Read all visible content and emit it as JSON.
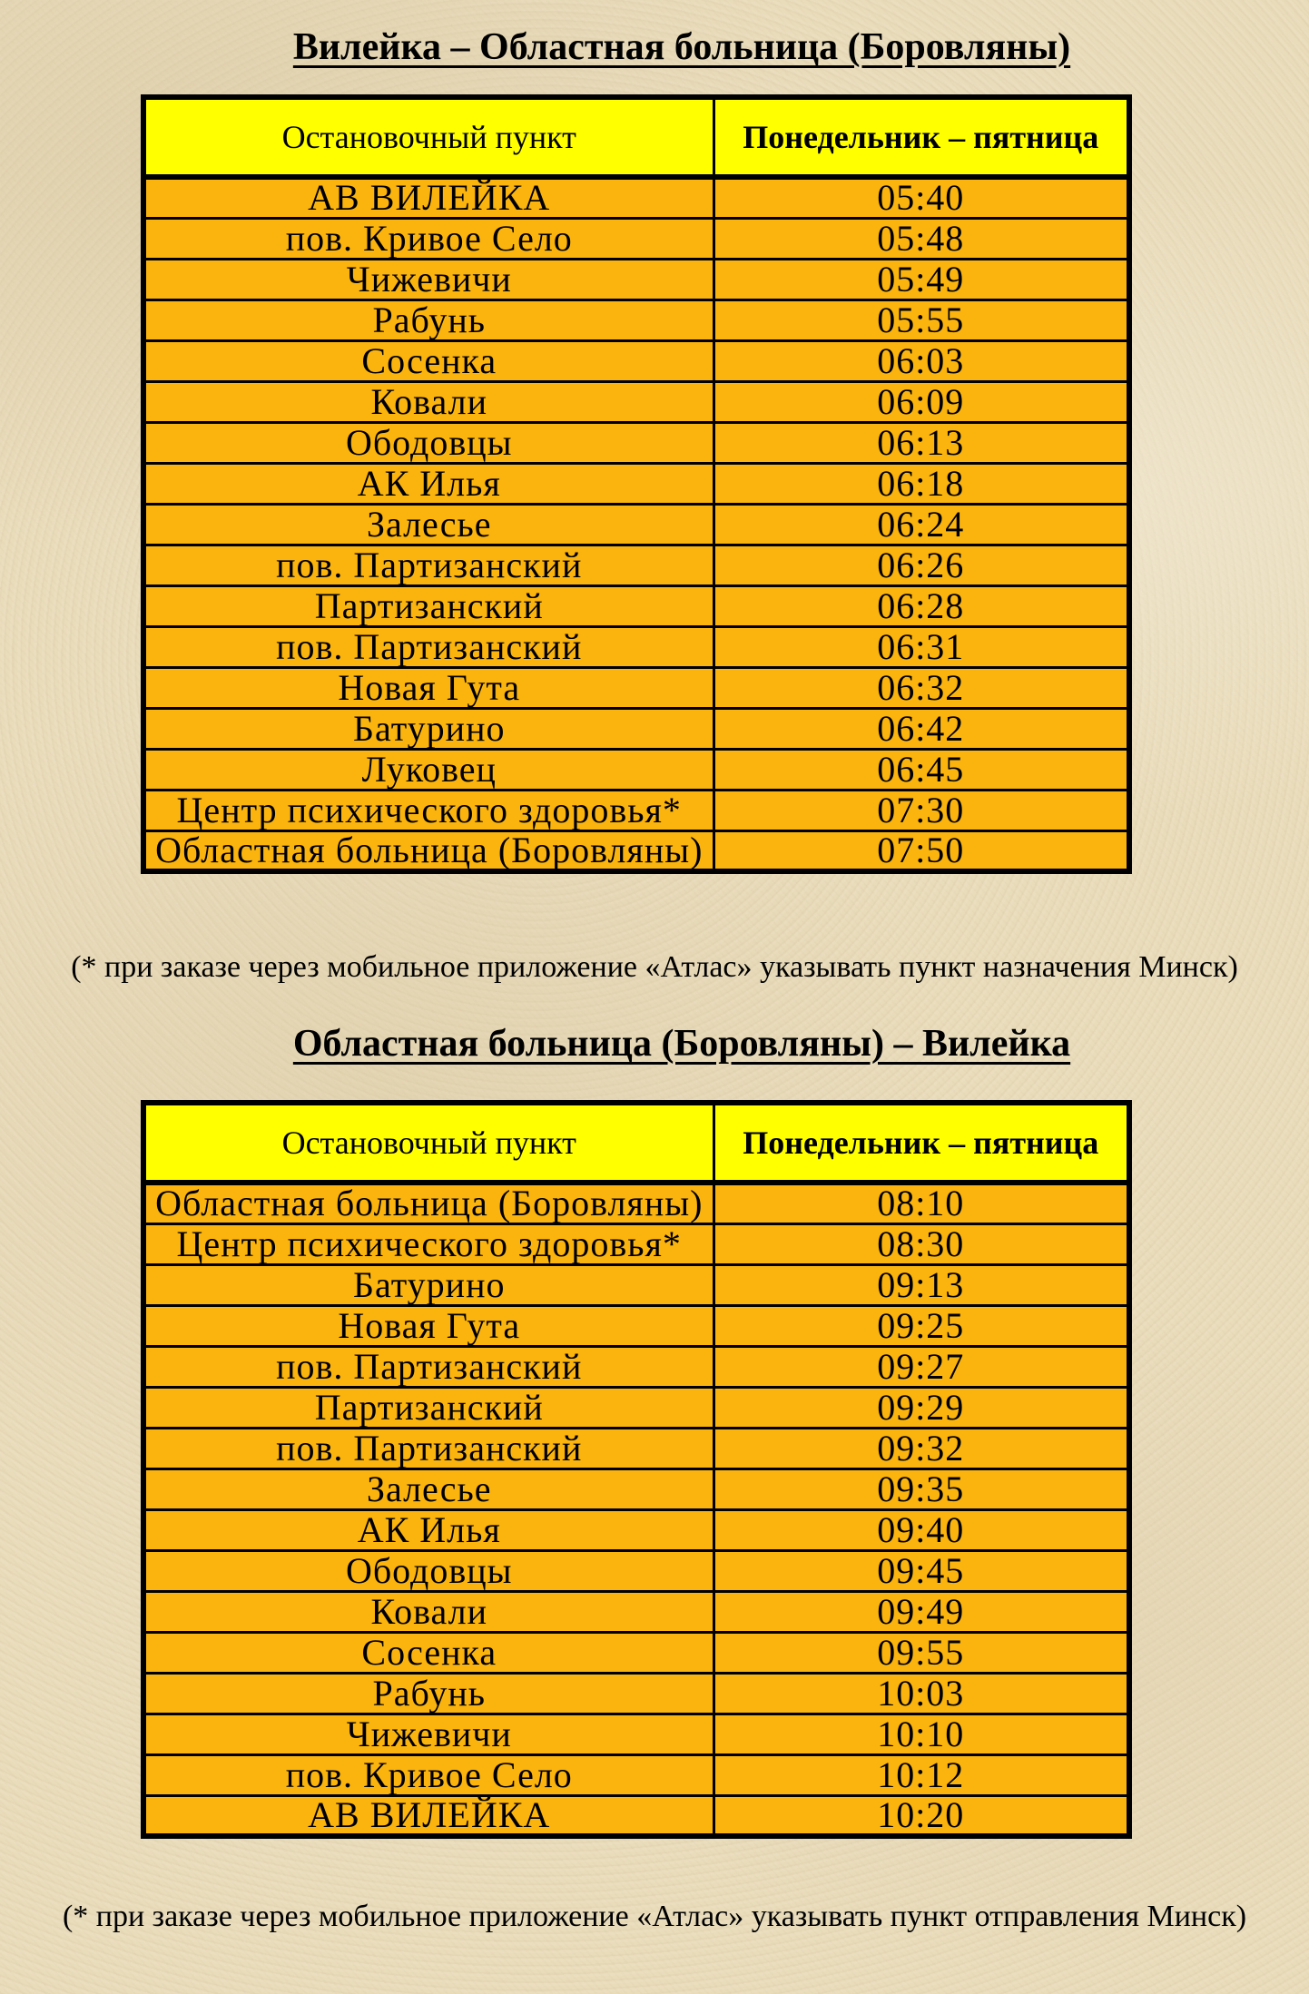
{
  "colors": {
    "header_bg": "#ffff00",
    "row_bg": "#fbb40e",
    "border": "#000000",
    "text": "#000000",
    "page_bg": "#e9dcbb"
  },
  "tables": [
    {
      "title": "Вилейка – Областная больница (Боровляны)",
      "col_stop": "Остановочный пункт",
      "col_days": "Понедельник – пятница",
      "rows": [
        {
          "stop": "АВ ВИЛЕЙКА",
          "time": "05:40"
        },
        {
          "stop": "пов. Кривое Село",
          "time": "05:48"
        },
        {
          "stop": "Чижевичи",
          "time": "05:49"
        },
        {
          "stop": "Рабунь",
          "time": "05:55"
        },
        {
          "stop": "Сосенка",
          "time": "06:03"
        },
        {
          "stop": "Ковали",
          "time": "06:09"
        },
        {
          "stop": "Ободовцы",
          "time": "06:13"
        },
        {
          "stop": "АК Илья",
          "time": "06:18"
        },
        {
          "stop": "Залесье",
          "time": "06:24"
        },
        {
          "stop": "пов. Партизанский",
          "time": "06:26"
        },
        {
          "stop": "Партизанский",
          "time": "06:28"
        },
        {
          "stop": "пов. Партизанский",
          "time": "06:31"
        },
        {
          "stop": "Новая Гута",
          "time": "06:32"
        },
        {
          "stop": "Батурино",
          "time": "06:42"
        },
        {
          "stop": "Луковец",
          "time": "06:45"
        },
        {
          "stop": "Центр психического здоровья*",
          "time": "07:30"
        },
        {
          "stop": "Областная больница (Боровляны)",
          "time": "07:50"
        }
      ],
      "note": "(* при заказе через мобильное приложение «Атлас» указывать пункт назначения Минск)"
    },
    {
      "title": "Областная больница (Боровляны) – Вилейка",
      "col_stop": "Остановочный пункт",
      "col_days": "Понедельник – пятница",
      "rows": [
        {
          "stop": "Областная больница (Боровляны)",
          "time": "08:10"
        },
        {
          "stop": "Центр психического здоровья*",
          "time": "08:30"
        },
        {
          "stop": "Батурино",
          "time": "09:13"
        },
        {
          "stop": "Новая Гута",
          "time": "09:25"
        },
        {
          "stop": "пов. Партизанский",
          "time": "09:27"
        },
        {
          "stop": "Партизанский",
          "time": "09:29"
        },
        {
          "stop": "пов. Партизанский",
          "time": "09:32"
        },
        {
          "stop": "Залесье",
          "time": "09:35"
        },
        {
          "stop": "АК Илья",
          "time": "09:40"
        },
        {
          "stop": "Ободовцы",
          "time": "09:45"
        },
        {
          "stop": "Ковали",
          "time": "09:49"
        },
        {
          "stop": "Сосенка",
          "time": "09:55"
        },
        {
          "stop": "Рабунь",
          "time": "10:03"
        },
        {
          "stop": "Чижевичи",
          "time": "10:10"
        },
        {
          "stop": "пов. Кривое Село",
          "time": "10:12"
        },
        {
          "stop": "АВ ВИЛЕЙКА",
          "time": "10:20"
        }
      ],
      "note": "(* при заказе через мобильное приложение «Атлас» указывать пункт отправления Минск)"
    }
  ]
}
